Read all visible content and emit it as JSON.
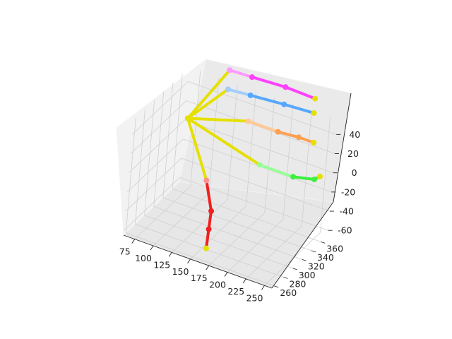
{
  "chart_data": {
    "type": "line3d",
    "title": "",
    "xlabel": "",
    "ylabel": "",
    "zlabel": "",
    "xlim": [
      60,
      260
    ],
    "ylim": [
      255,
      375
    ],
    "zlim": [
      -65,
      55
    ],
    "x_ticks": [
      75,
      100,
      125,
      150,
      175,
      200,
      225,
      250
    ],
    "y_ticks": [
      260,
      280,
      300,
      320,
      340,
      360
    ],
    "z_ticks": [
      -60,
      -40,
      -20,
      0,
      20,
      40
    ],
    "joint_color": "#e5e000",
    "series": [
      {
        "color_line": "#f02020",
        "color_light": "#ff9090",
        "points": [
          [
            75,
            355,
            15
          ],
          [
            112,
            345,
            -35
          ],
          [
            130,
            330,
            -55
          ],
          [
            140,
            310,
            -62
          ],
          [
            150,
            290,
            -70
          ]
        ],
        "light_segments": 1
      },
      {
        "color_line": "#ffa050",
        "color_light": "#ffc896",
        "points": [
          [
            75,
            355,
            15
          ],
          [
            160,
            345,
            40
          ],
          [
            200,
            345,
            40
          ],
          [
            228,
            345,
            42
          ],
          [
            248,
            345,
            42
          ]
        ],
        "light_segments": 2
      },
      {
        "color_line": "#55a8ff",
        "color_light": "#a2cdff",
        "points": [
          [
            75,
            355,
            15
          ],
          [
            130,
            345,
            65
          ],
          [
            160,
            345,
            67
          ],
          [
            205,
            345,
            70
          ],
          [
            245,
            345,
            72
          ]
        ],
        "light_segments": 2
      },
      {
        "color_line": "#ff40ff",
        "color_light": "#ff98ff",
        "points": [
          [
            75,
            355,
            15
          ],
          [
            130,
            345,
            85
          ],
          [
            160,
            345,
            86
          ],
          [
            205,
            345,
            88
          ],
          [
            245,
            345,
            87
          ]
        ],
        "light_segments": 2
      },
      {
        "color_line": "#40ee40",
        "color_light": "#98ff98",
        "points": [
          [
            75,
            355,
            15
          ],
          [
            180,
            345,
            0
          ],
          [
            225,
            345,
            0
          ],
          [
            253,
            345,
            5
          ],
          [
            260,
            345,
            10
          ]
        ],
        "light_segments": 2
      }
    ]
  }
}
